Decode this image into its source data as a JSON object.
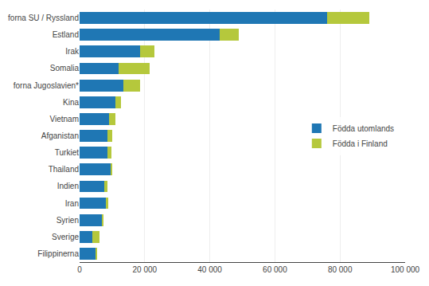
{
  "chart_data": {
    "type": "bar",
    "orientation": "horizontal",
    "stacked": true,
    "categories": [
      "forna SU / Ryssland",
      "Estland",
      "Irak",
      "Somalia",
      "forna Jugoslavien*",
      "Kina",
      "Vietnam",
      "Afganistan",
      "Turkiet",
      "Thailand",
      "Indien",
      "Iran",
      "Syrien",
      "Sverige",
      "Filippinerna"
    ],
    "series": [
      {
        "name": "Födda utomlands",
        "color": "#1f77b4",
        "values": [
          76000,
          43000,
          18500,
          12000,
          13500,
          11000,
          9000,
          8500,
          8500,
          9500,
          7500,
          8000,
          7000,
          4000,
          5000
        ]
      },
      {
        "name": "Födda i Finland",
        "color": "#b5c83c",
        "values": [
          13000,
          6000,
          4500,
          9500,
          5000,
          1800,
          2000,
          1500,
          1200,
          500,
          1000,
          800,
          300,
          2200,
          200
        ]
      }
    ],
    "xlim": [
      0,
      100000
    ],
    "xticks": [
      0,
      {
        "value": 20000,
        "label": "20 000"
      },
      {
        "value": 40000,
        "label": "40 000"
      },
      {
        "value": 60000,
        "label": "60 000"
      },
      {
        "value": 80000,
        "label": "80 000"
      },
      {
        "value": 100000,
        "label": "100 000"
      }
    ],
    "grid": true,
    "legend": "center right"
  }
}
